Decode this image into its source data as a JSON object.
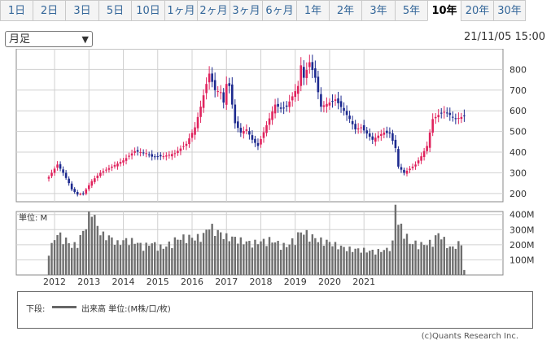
{
  "tabs": [
    {
      "label": "1日",
      "active": false
    },
    {
      "label": "2日",
      "active": false
    },
    {
      "label": "3日",
      "active": false
    },
    {
      "label": "5日",
      "active": false
    },
    {
      "label": "10日",
      "active": false
    },
    {
      "label": "1ヶ月",
      "active": false
    },
    {
      "label": "2ヶ月",
      "active": false
    },
    {
      "label": "3ヶ月",
      "active": false
    },
    {
      "label": "6ヶ月",
      "active": false
    },
    {
      "label": "1年",
      "active": false
    },
    {
      "label": "2年",
      "active": false
    },
    {
      "label": "3年",
      "active": false
    },
    {
      "label": "5年",
      "active": false
    },
    {
      "label": "10年",
      "active": true
    },
    {
      "label": "20年",
      "active": false
    },
    {
      "label": "30年",
      "active": false
    }
  ],
  "period_select": {
    "value": "月足"
  },
  "timestamp": "21/11/05 15:00",
  "legend": {
    "lower_label": "下段:",
    "series_label": "出来高 単位:(M株/口/枚)"
  },
  "copyright": "(c)Quants Research Inc.",
  "colors": {
    "up": "#e0245e",
    "down": "#1d2a8f",
    "volume": "#6e6e6e",
    "grid": "#d0d0d0"
  },
  "chart_data": {
    "type": "candlestick",
    "price_yticks": [
      200,
      300,
      400,
      500,
      600,
      700,
      800
    ],
    "price_ylim": [
      160,
      900
    ],
    "volume_unit_label": "単位: M",
    "volume_yticks": [
      "100M",
      "200M",
      "300M",
      "400M"
    ],
    "volume_ylim": [
      0,
      420
    ],
    "year_labels": [
      "2012",
      "2013",
      "2014",
      "2015",
      "2016",
      "2017",
      "2018",
      "2019",
      "2020",
      "2021"
    ],
    "x_start": "2011-11",
    "anchors_close": [
      [
        0,
        280
      ],
      [
        3,
        340
      ],
      [
        5,
        300
      ],
      [
        7,
        250
      ],
      [
        8,
        220
      ],
      [
        10,
        195
      ],
      [
        12,
        200
      ],
      [
        15,
        260
      ],
      [
        18,
        300
      ],
      [
        22,
        330
      ],
      [
        26,
        360
      ],
      [
        30,
        405
      ],
      [
        34,
        395
      ],
      [
        36,
        378
      ],
      [
        40,
        380
      ],
      [
        44,
        395
      ],
      [
        48,
        440
      ],
      [
        51,
        520
      ],
      [
        53,
        620
      ],
      [
        55,
        730
      ],
      [
        56,
        780
      ],
      [
        58,
        700
      ],
      [
        60,
        690
      ],
      [
        61,
        640
      ],
      [
        62,
        730
      ],
      [
        63,
        720
      ],
      [
        65,
        540
      ],
      [
        67,
        495
      ],
      [
        69,
        510
      ],
      [
        71,
        460
      ],
      [
        73,
        430
      ],
      [
        76,
        530
      ],
      [
        79,
        630
      ],
      [
        81,
        610
      ],
      [
        83,
        620
      ],
      [
        85,
        670
      ],
      [
        87,
        720
      ],
      [
        88,
        820
      ],
      [
        89,
        760
      ],
      [
        91,
        835
      ],
      [
        93,
        760
      ],
      [
        95,
        620
      ],
      [
        98,
        640
      ],
      [
        100,
        655
      ],
      [
        103,
        600
      ],
      [
        105,
        560
      ],
      [
        107,
        510
      ],
      [
        109,
        520
      ],
      [
        111,
        490
      ],
      [
        113,
        460
      ],
      [
        115,
        480
      ],
      [
        117,
        495
      ],
      [
        119,
        490
      ],
      [
        121,
        420
      ],
      [
        122,
        330
      ],
      [
        124,
        300
      ],
      [
        126,
        320
      ],
      [
        128,
        340
      ],
      [
        130,
        380
      ],
      [
        132,
        430
      ],
      [
        134,
        560
      ],
      [
        136,
        580
      ],
      [
        138,
        595
      ],
      [
        140,
        580
      ],
      [
        142,
        560
      ],
      [
        144,
        570
      ],
      [
        145,
        575
      ]
    ],
    "volume_anchors": [
      [
        0,
        150
      ],
      [
        3,
        260
      ],
      [
        6,
        220
      ],
      [
        8,
        180
      ],
      [
        10,
        200
      ],
      [
        13,
        310
      ],
      [
        15,
        420
      ],
      [
        17,
        300
      ],
      [
        19,
        250
      ],
      [
        21,
        240
      ],
      [
        24,
        200
      ],
      [
        27,
        220
      ],
      [
        30,
        210
      ],
      [
        33,
        180
      ],
      [
        36,
        200
      ],
      [
        40,
        170
      ],
      [
        44,
        220
      ],
      [
        48,
        240
      ],
      [
        51,
        230
      ],
      [
        54,
        250
      ],
      [
        56,
        310
      ],
      [
        58,
        280
      ],
      [
        62,
        240
      ],
      [
        65,
        230
      ],
      [
        68,
        210
      ],
      [
        71,
        200
      ],
      [
        74,
        210
      ],
      [
        77,
        220
      ],
      [
        80,
        200
      ],
      [
        83,
        180
      ],
      [
        86,
        230
      ],
      [
        88,
        270
      ],
      [
        90,
        260
      ],
      [
        92,
        240
      ],
      [
        94,
        220
      ],
      [
        97,
        210
      ],
      [
        100,
        190
      ],
      [
        103,
        170
      ],
      [
        106,
        160
      ],
      [
        109,
        160
      ],
      [
        112,
        150
      ],
      [
        115,
        150
      ],
      [
        118,
        160
      ],
      [
        120,
        200
      ],
      [
        121,
        460
      ],
      [
        122,
        320
      ],
      [
        124,
        280
      ],
      [
        126,
        200
      ],
      [
        128,
        200
      ],
      [
        131,
        190
      ],
      [
        134,
        210
      ],
      [
        136,
        260
      ],
      [
        138,
        220
      ],
      [
        140,
        170
      ],
      [
        142,
        180
      ],
      [
        144,
        210
      ],
      [
        145,
        30
      ]
    ]
  }
}
